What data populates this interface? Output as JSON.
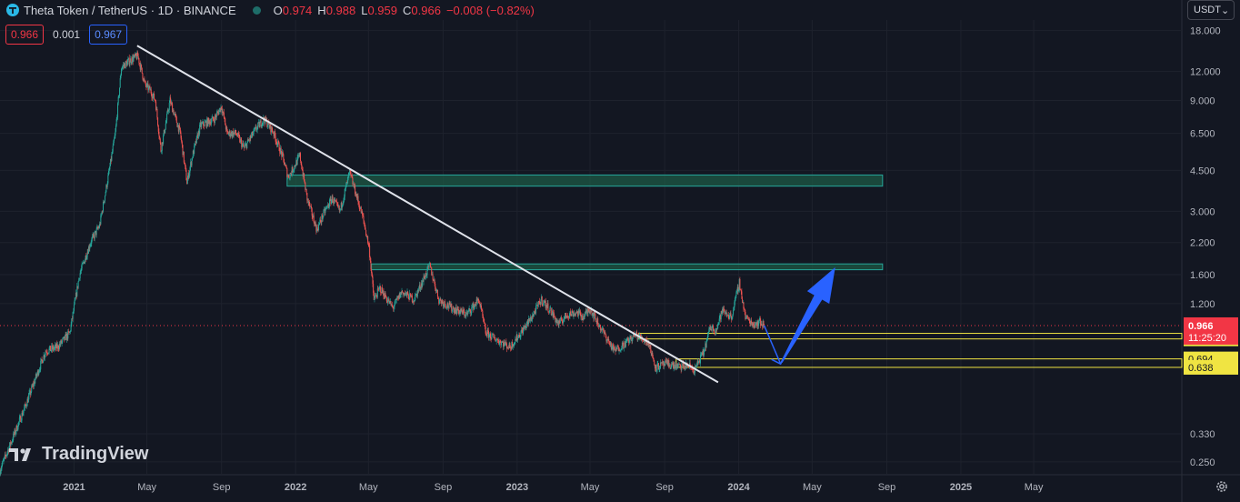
{
  "header": {
    "symbol": "Theta Token / TetherUS · 1D · BINANCE",
    "ohlc": {
      "o_label": "O",
      "o": "0.974",
      "h_label": "H",
      "h": "0.988",
      "l_label": "L",
      "l": "0.959",
      "c_label": "C",
      "c": "0.966",
      "change": "−0.008 (−0.82%)"
    }
  },
  "trade": {
    "sell": "0.966",
    "spread": "0.001",
    "buy": "0.967"
  },
  "currency_button": "USDT",
  "branding": "TradingView",
  "colors": {
    "background": "#131722",
    "up": "#26a69a",
    "down": "#ef5350",
    "trendline": "#e0e3eb",
    "zone_fill": "#1e5a45",
    "zone_stroke": "#26a69a",
    "support": "#f0e442",
    "arrow": "#2962ff",
    "last_price": "#f23645"
  },
  "chart_data": {
    "type": "candlestick",
    "y_scale": "log",
    "ylim": [
      0.22,
      20
    ],
    "xlim": [
      "2020-09-01",
      "2025-12-31"
    ],
    "y_ticks": [
      "18.000",
      "12.000",
      "9.000",
      "6.500",
      "4.500",
      "3.000",
      "2.200",
      "1.600",
      "1.200",
      "0.330",
      "0.250"
    ],
    "x_ticks": [
      {
        "label": "2021",
        "date": "2021-01-01",
        "bold": true
      },
      {
        "label": "May",
        "date": "2021-05-01"
      },
      {
        "label": "Sep",
        "date": "2021-09-01"
      },
      {
        "label": "2022",
        "date": "2022-01-01",
        "bold": true
      },
      {
        "label": "May",
        "date": "2022-05-01"
      },
      {
        "label": "Sep",
        "date": "2022-09-01"
      },
      {
        "label": "2023",
        "date": "2023-01-01",
        "bold": true
      },
      {
        "label": "May",
        "date": "2023-05-01"
      },
      {
        "label": "Sep",
        "date": "2023-09-01"
      },
      {
        "label": "2024",
        "date": "2024-01-01",
        "bold": true
      },
      {
        "label": "May",
        "date": "2024-05-01"
      },
      {
        "label": "Sep",
        "date": "2024-09-01"
      },
      {
        "label": "2025",
        "date": "2025-01-01",
        "bold": true
      },
      {
        "label": "May",
        "date": "2025-05-01"
      }
    ],
    "price_path": [
      [
        "2020-09-01",
        0.23
      ],
      [
        "2020-10-15",
        0.45
      ],
      [
        "2020-11-15",
        0.75
      ],
      [
        "2020-12-05",
        0.78
      ],
      [
        "2020-12-25",
        0.9
      ],
      [
        "2021-01-10",
        1.6
      ],
      [
        "2021-01-28",
        2.2
      ],
      [
        "2021-02-12",
        2.6
      ],
      [
        "2021-02-28",
        4.5
      ],
      [
        "2021-03-10",
        6.5
      ],
      [
        "2021-03-20",
        12.5
      ],
      [
        "2021-04-05",
        13.5
      ],
      [
        "2021-04-16",
        14.0
      ],
      [
        "2021-04-28",
        10.5
      ],
      [
        "2021-05-06",
        10.0
      ],
      [
        "2021-05-15",
        9.0
      ],
      [
        "2021-05-24",
        5.5
      ],
      [
        "2021-06-08",
        9.0
      ],
      [
        "2021-06-25",
        6.5
      ],
      [
        "2021-07-06",
        4.0
      ],
      [
        "2021-07-15",
        5.2
      ],
      [
        "2021-07-28",
        7.0
      ],
      [
        "2021-08-20",
        7.5
      ],
      [
        "2021-09-01",
        8.5
      ],
      [
        "2021-09-10",
        6.5
      ],
      [
        "2021-09-25",
        6.5
      ],
      [
        "2021-10-08",
        5.6
      ],
      [
        "2021-10-28",
        6.8
      ],
      [
        "2021-11-10",
        7.5
      ],
      [
        "2021-11-25",
        6.6
      ],
      [
        "2021-12-10",
        5.2
      ],
      [
        "2021-12-20",
        4.2
      ],
      [
        "2022-01-08",
        5.2
      ],
      [
        "2022-01-20",
        3.4
      ],
      [
        "2022-02-05",
        2.5
      ],
      [
        "2022-02-18",
        3.0
      ],
      [
        "2022-03-02",
        3.4
      ],
      [
        "2022-03-15",
        3.0
      ],
      [
        "2022-03-31",
        4.4
      ],
      [
        "2022-04-10",
        3.6
      ],
      [
        "2022-04-22",
        2.8
      ],
      [
        "2022-05-02",
        2.1
      ],
      [
        "2022-05-10",
        1.25
      ],
      [
        "2022-05-20",
        1.4
      ],
      [
        "2022-06-10",
        1.15
      ],
      [
        "2022-06-25",
        1.35
      ],
      [
        "2022-07-15",
        1.25
      ],
      [
        "2022-08-10",
        1.75
      ],
      [
        "2022-08-25",
        1.25
      ],
      [
        "2022-09-15",
        1.15
      ],
      [
        "2022-10-10",
        1.08
      ],
      [
        "2022-10-30",
        1.25
      ],
      [
        "2022-11-10",
        0.9
      ],
      [
        "2022-11-25",
        0.85
      ],
      [
        "2022-12-20",
        0.78
      ],
      [
        "2023-01-10",
        0.92
      ],
      [
        "2023-01-25",
        1.05
      ],
      [
        "2023-02-10",
        1.25
      ],
      [
        "2023-02-25",
        1.12
      ],
      [
        "2023-03-10",
        0.98
      ],
      [
        "2023-03-25",
        1.08
      ],
      [
        "2023-04-10",
        1.1
      ],
      [
        "2023-04-20",
        1.05
      ],
      [
        "2023-05-01",
        1.15
      ],
      [
        "2023-05-15",
        0.98
      ],
      [
        "2023-06-10",
        0.75
      ],
      [
        "2023-06-25",
        0.8
      ],
      [
        "2023-07-15",
        0.88
      ],
      [
        "2023-08-05",
        0.82
      ],
      [
        "2023-08-17",
        0.64
      ],
      [
        "2023-09-05",
        0.66
      ],
      [
        "2023-09-25",
        0.64
      ],
      [
        "2023-10-10",
        0.65
      ],
      [
        "2023-10-20",
        0.62
      ],
      [
        "2023-11-05",
        0.75
      ],
      [
        "2023-11-15",
        0.95
      ],
      [
        "2023-11-25",
        0.93
      ],
      [
        "2023-12-05",
        1.12
      ],
      [
        "2023-12-20",
        1.05
      ],
      [
        "2024-01-02",
        1.48
      ],
      [
        "2024-01-12",
        1.05
      ],
      [
        "2024-01-25",
        0.98
      ],
      [
        "2024-02-05",
        1.0
      ],
      [
        "2024-02-12",
        0.966
      ]
    ],
    "last_price": {
      "value": 0.966,
      "label": "0.966",
      "countdown": "11:25:20"
    },
    "price_labels": [
      {
        "value": 0.894,
        "label": "0.894"
      },
      {
        "value": 0.846,
        "label": "0.846"
      },
      {
        "value": 0.694,
        "label": "0.694"
      },
      {
        "value": 0.638,
        "label": "0.638"
      }
    ],
    "drawings": {
      "trendline": {
        "start": [
          "2021-04-15",
          15.5
        ],
        "end": [
          "2023-11-28",
          0.55
        ]
      },
      "resistance_zones": [
        {
          "from": "2021-12-18",
          "to": "2024-08-25",
          "low": 3.85,
          "high": 4.3
        },
        {
          "from": "2022-05-06",
          "to": "2024-08-25",
          "low": 1.68,
          "high": 1.78
        }
      ],
      "support_boxes": [
        {
          "from": "2023-07-20",
          "to": "2025-12-31",
          "low": 0.846,
          "high": 0.894
        },
        {
          "from": "2023-09-20",
          "to": "2025-12-31",
          "low": 0.638,
          "high": 0.694
        }
      ],
      "projection": [
        [
          "2024-02-12",
          0.966
        ],
        [
          "2024-03-10",
          0.66
        ],
        [
          "2024-06-08",
          1.72
        ]
      ]
    }
  }
}
